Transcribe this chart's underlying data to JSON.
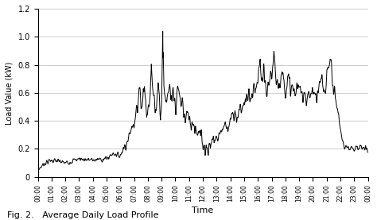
{
  "title": "Fig. 2.   Average Daily Load Profile",
  "xlabel": "Time",
  "ylabel": "Load Value (kW)",
  "ylim": [
    0,
    1.2
  ],
  "yticks": [
    0,
    0.2,
    0.4,
    0.6,
    0.8,
    1.0,
    1.2
  ],
  "line_color": "#000000",
  "line_width": 0.7,
  "background_color": "#ffffff",
  "grid_color": "#bbbbbb",
  "xtick_labels": [
    "00:00",
    "01:00",
    "02:00",
    "03:00",
    "04:00",
    "05:00",
    "06:00",
    "07:00",
    "08:00",
    "09:00",
    "10:00",
    "11:00",
    "12:00",
    "13:00",
    "14:00",
    "15:00",
    "16:00",
    "17:00",
    "18:00",
    "19:00",
    "20:00",
    "21:00",
    "22:00",
    "23:00",
    "00:00"
  ],
  "seed": 7
}
